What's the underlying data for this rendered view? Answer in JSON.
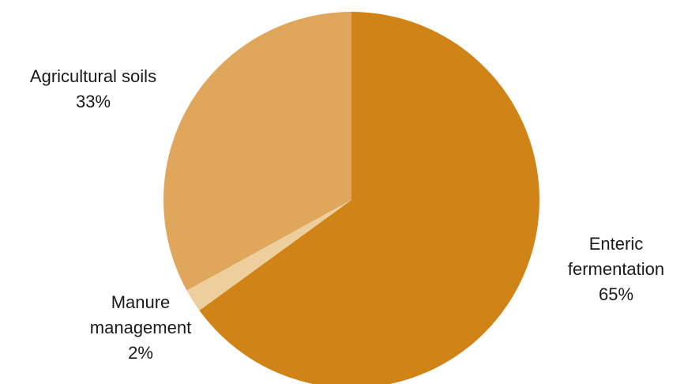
{
  "chart_data": {
    "type": "pie",
    "slices": [
      {
        "name": "Enteric fermentation",
        "label_lines": [
          "Enteric",
          "fermentation"
        ],
        "percent_label": "65%",
        "value": 65,
        "color": "#D08418"
      },
      {
        "name": "Manure management",
        "label_lines": [
          "Manure",
          "management"
        ],
        "percent_label": "2%",
        "value": 2,
        "color": "#EDCF9E"
      },
      {
        "name": "Agricultural soils",
        "label_lines": [
          "Agricultural soils"
        ],
        "percent_label": "33%",
        "value": 33,
        "color": "#E0A65B"
      }
    ],
    "start": "top",
    "direction": "clockwise"
  }
}
